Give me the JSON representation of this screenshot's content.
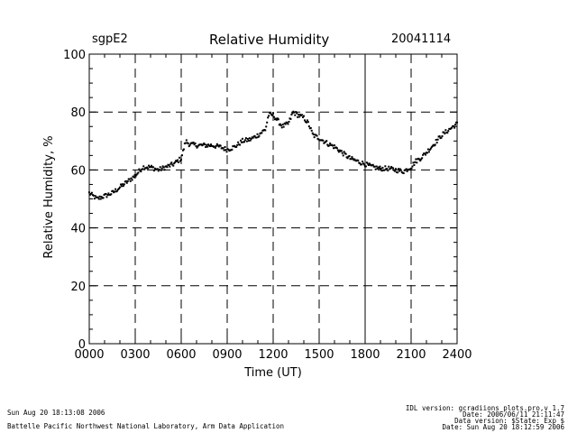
{
  "header": {
    "site": "sgpE2",
    "title": "Relative Humidity",
    "date": "20041114"
  },
  "footer": {
    "left_line1": "Sun Aug 20 18:13:08 2006",
    "left_line2": "Battelle Pacific Northwest National Laboratory, Arm Data Application",
    "right_lines": [
      "IDL version: gcradiions_plots.pro,v 1.7",
      "Date: 2006/06/11 21:11:47",
      "Data version: $State: Exp $",
      "Date: Sun Aug 20 18:12:59 2006"
    ]
  },
  "chart_data": {
    "type": "scatter",
    "title": "Relative Humidity",
    "xlabel": "Time (UT)",
    "ylabel": "Relative Humidity, %",
    "xlim": [
      0,
      2400
    ],
    "ylim": [
      0,
      100
    ],
    "x_ticks": [
      0,
      300,
      600,
      900,
      1200,
      1500,
      1800,
      2100,
      2400
    ],
    "x_tick_labels": [
      "0000",
      "0300",
      "0600",
      "0900",
      "1200",
      "1500",
      "1800",
      "2100",
      "2400"
    ],
    "y_ticks": [
      0,
      20,
      40,
      60,
      80,
      100
    ],
    "y_tick_labels": [
      "0",
      "20",
      "40",
      "60",
      "80",
      "100"
    ],
    "dashed_vlines": [
      300,
      600,
      900,
      1200,
      1500,
      1800,
      2100
    ],
    "dashed_hlines": [
      20,
      40,
      60,
      80
    ],
    "series": [
      {
        "name": "Relative Humidity",
        "x_hours": [
          0,
          0.5,
          1,
          1.5,
          2,
          2.5,
          3,
          3.5,
          4,
          4.5,
          5,
          5.5,
          6,
          6.1,
          6.3,
          6.5,
          7,
          7.5,
          8,
          8.5,
          9,
          9.5,
          10,
          10.5,
          11,
          11.5,
          11.7,
          12,
          12.3,
          12.6,
          13,
          13.3,
          13.6,
          14,
          14.3,
          14.6,
          15,
          15.3,
          15.6,
          16,
          16.5,
          17,
          17.5,
          18,
          18.5,
          19,
          19.5,
          20,
          20.5,
          21,
          21.3,
          21.6,
          22,
          22.5,
          23,
          23.5,
          24
        ],
        "values": [
          52,
          50,
          51,
          52,
          54,
          56,
          58,
          61,
          61,
          60,
          61,
          62,
          64,
          66,
          70,
          69,
          68.5,
          68.5,
          68.5,
          68,
          67,
          68,
          70,
          70.5,
          72,
          74,
          79,
          79,
          77,
          75,
          76,
          80,
          79,
          78,
          76,
          72,
          71,
          70,
          69,
          68,
          66,
          64,
          63,
          62,
          61,
          60.5,
          60.5,
          60,
          59.5,
          61,
          63,
          64,
          66,
          69,
          72,
          74,
          76
        ]
      }
    ]
  }
}
